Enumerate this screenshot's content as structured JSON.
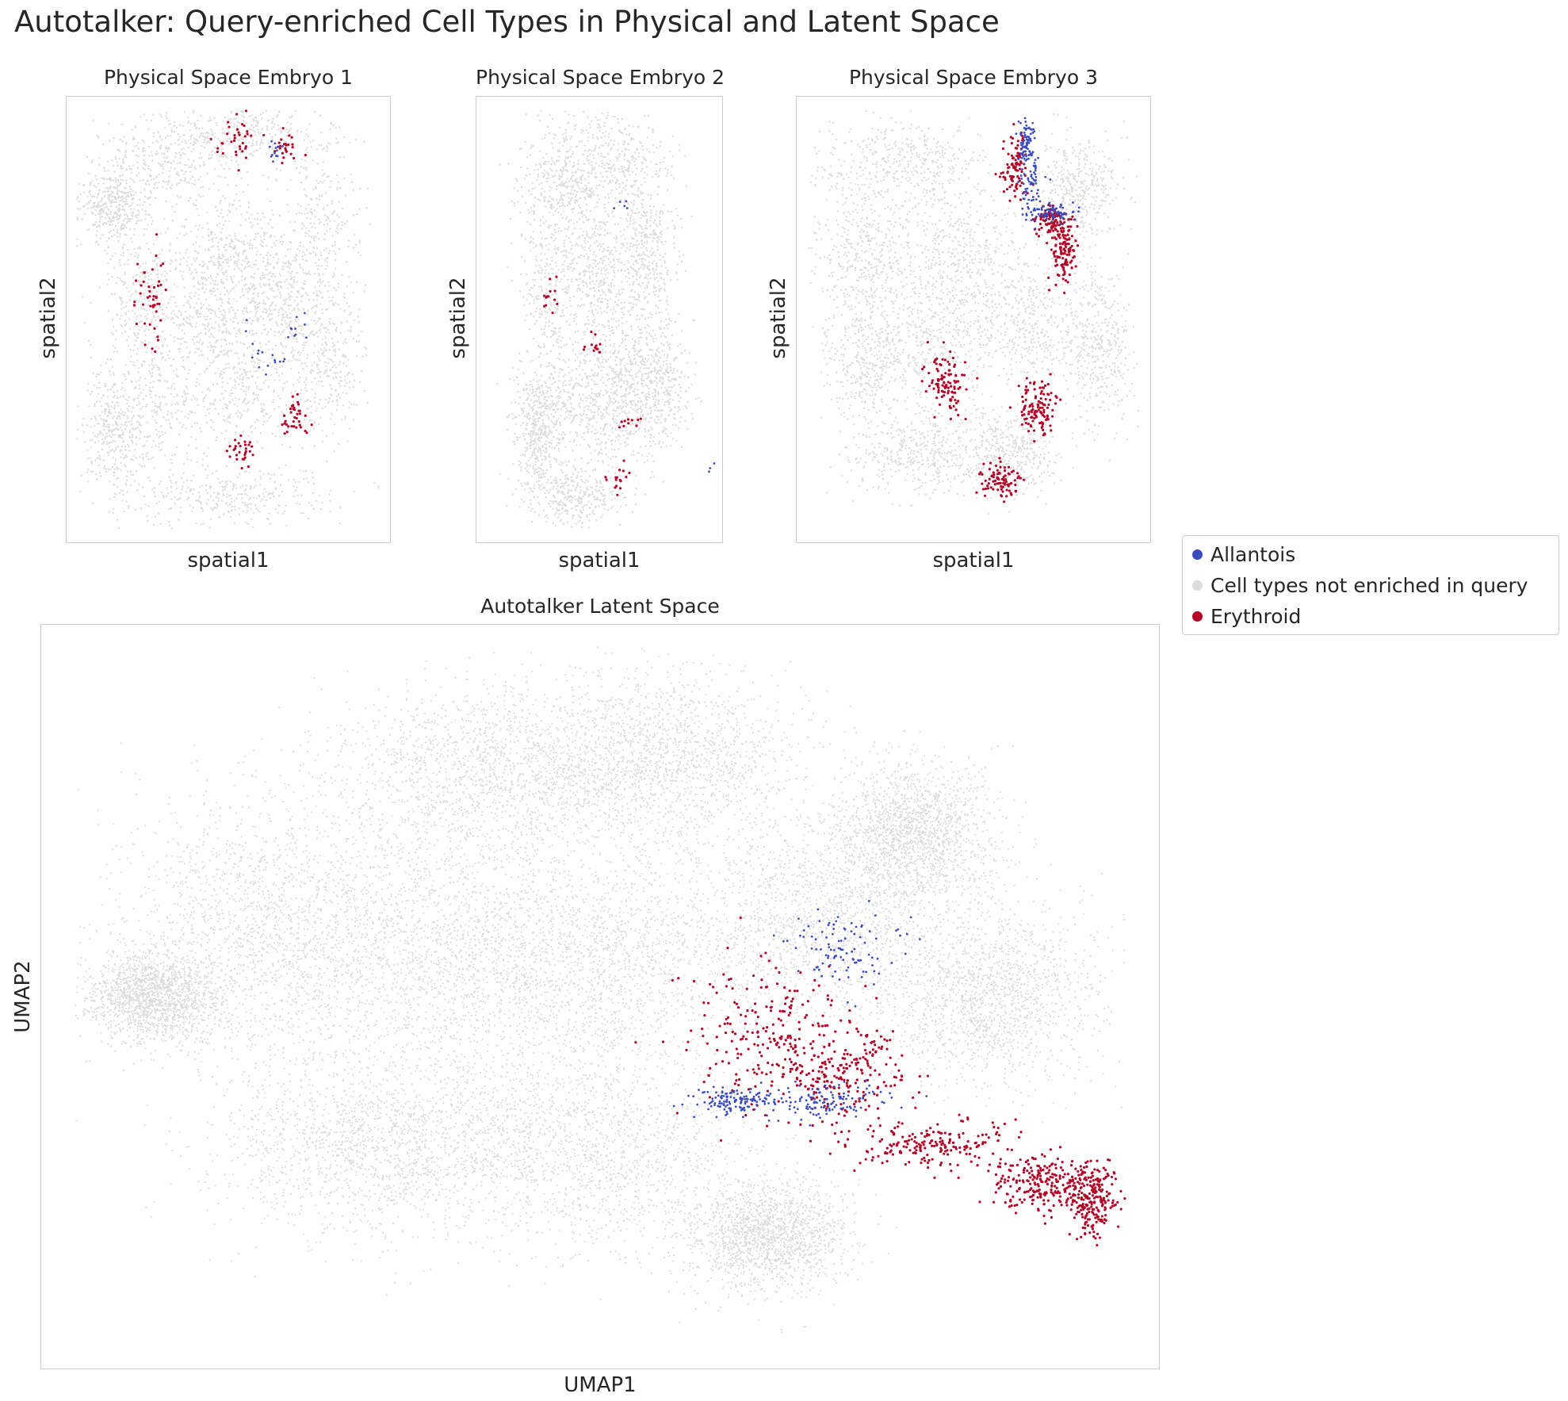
{
  "figure": {
    "title": "Autotalker: Query-enriched Cell Types in Physical and Latent Space"
  },
  "colors": {
    "allantois": "#3b4cc0",
    "not_enriched": "#dcdcdc",
    "erythroid": "#b40426"
  },
  "legend": {
    "items": [
      {
        "label": "Allantois",
        "color": "#3b4cc0"
      },
      {
        "label": "Cell types not enriched in query",
        "color": "#dcdcdc"
      },
      {
        "label": "Erythroid",
        "color": "#b40426"
      }
    ]
  },
  "chart_data": [
    {
      "type": "scatter",
      "title": "Physical Space Embryo 1",
      "xlabel": "spatial1",
      "ylabel": "spatial2",
      "ticks": "none",
      "grid": false,
      "categories": [
        "Allantois",
        "Cell types not enriched in query",
        "Erythroid"
      ],
      "clusters": {
        "background": [
          [
            0.14,
            0.25,
            0.08,
            0.07
          ],
          [
            0.3,
            0.15,
            0.18,
            0.08
          ],
          [
            0.55,
            0.08,
            0.2,
            0.06
          ],
          [
            0.25,
            0.45,
            0.12,
            0.15
          ],
          [
            0.5,
            0.35,
            0.12,
            0.1
          ],
          [
            0.78,
            0.3,
            0.1,
            0.2
          ],
          [
            0.3,
            0.7,
            0.15,
            0.12
          ],
          [
            0.55,
            0.65,
            0.15,
            0.12
          ],
          [
            0.8,
            0.6,
            0.1,
            0.15
          ],
          [
            0.5,
            0.9,
            0.28,
            0.06
          ],
          [
            0.15,
            0.75,
            0.08,
            0.12
          ],
          [
            0.45,
            0.5,
            0.15,
            0.1
          ],
          [
            0.65,
            0.45,
            0.1,
            0.12
          ]
        ],
        "allantois": [
          [
            0.6,
            0.58,
            0.05,
            0.06
          ],
          [
            0.7,
            0.52,
            0.03,
            0.03
          ],
          [
            0.65,
            0.12,
            0.02,
            0.02
          ]
        ],
        "erythroid": [
          [
            0.68,
            0.11,
            0.03,
            0.03
          ],
          [
            0.26,
            0.45,
            0.04,
            0.08
          ],
          [
            0.7,
            0.72,
            0.03,
            0.04
          ],
          [
            0.55,
            0.8,
            0.04,
            0.03
          ],
          [
            0.52,
            0.1,
            0.05,
            0.05
          ]
        ]
      },
      "counts": {
        "background": 4200,
        "allantois": 40,
        "erythroid": 170
      }
    },
    {
      "type": "scatter",
      "title": "Physical Space Embryo 2",
      "xlabel": "spatial1",
      "ylabel": "spatial2",
      "ticks": "none",
      "grid": false,
      "categories": [
        "Allantois",
        "Cell types not enriched in query",
        "Erythroid"
      ],
      "clusters": {
        "background": [
          [
            0.35,
            0.2,
            0.15,
            0.12
          ],
          [
            0.55,
            0.15,
            0.2,
            0.1
          ],
          [
            0.3,
            0.45,
            0.12,
            0.2
          ],
          [
            0.5,
            0.4,
            0.12,
            0.12
          ],
          [
            0.7,
            0.35,
            0.1,
            0.15
          ],
          [
            0.45,
            0.7,
            0.18,
            0.12
          ],
          [
            0.6,
            0.65,
            0.12,
            0.15
          ],
          [
            0.4,
            0.9,
            0.15,
            0.06
          ],
          [
            0.25,
            0.75,
            0.08,
            0.12
          ],
          [
            0.75,
            0.65,
            0.1,
            0.12
          ]
        ],
        "allantois": [
          [
            0.95,
            0.83,
            0.02,
            0.02
          ],
          [
            0.6,
            0.25,
            0.02,
            0.02
          ]
        ],
        "erythroid": [
          [
            0.48,
            0.56,
            0.03,
            0.03
          ],
          [
            0.62,
            0.73,
            0.03,
            0.02
          ],
          [
            0.58,
            0.85,
            0.04,
            0.03
          ],
          [
            0.3,
            0.45,
            0.03,
            0.03
          ]
        ]
      },
      "counts": {
        "background": 3700,
        "allantois": 8,
        "erythroid": 55
      }
    },
    {
      "type": "scatter",
      "title": "Physical Space Embryo 3",
      "xlabel": "spatial1",
      "ylabel": "spatial2",
      "ticks": "none",
      "grid": false,
      "categories": [
        "Allantois",
        "Cell types not enriched in query",
        "Erythroid"
      ],
      "clusters": {
        "background": [
          [
            0.3,
            0.15,
            0.2,
            0.08
          ],
          [
            0.2,
            0.35,
            0.12,
            0.12
          ],
          [
            0.45,
            0.35,
            0.15,
            0.12
          ],
          [
            0.2,
            0.6,
            0.1,
            0.15
          ],
          [
            0.4,
            0.55,
            0.15,
            0.12
          ],
          [
            0.65,
            0.5,
            0.12,
            0.15
          ],
          [
            0.35,
            0.8,
            0.15,
            0.08
          ],
          [
            0.6,
            0.8,
            0.12,
            0.08
          ],
          [
            0.8,
            0.2,
            0.1,
            0.1
          ],
          [
            0.85,
            0.55,
            0.08,
            0.15
          ]
        ],
        "allantois": [
          [
            0.65,
            0.1,
            0.02,
            0.04
          ],
          [
            0.72,
            0.26,
            0.06,
            0.02
          ],
          [
            0.66,
            0.2,
            0.03,
            0.06
          ]
        ],
        "erythroid": [
          [
            0.62,
            0.15,
            0.03,
            0.06
          ],
          [
            0.76,
            0.35,
            0.03,
            0.06
          ],
          [
            0.72,
            0.28,
            0.04,
            0.03
          ],
          [
            0.42,
            0.64,
            0.05,
            0.06
          ],
          [
            0.68,
            0.7,
            0.04,
            0.05
          ],
          [
            0.58,
            0.86,
            0.05,
            0.03
          ]
        ]
      },
      "counts": {
        "background": 4100,
        "allantois": 230,
        "erythroid": 620
      }
    },
    {
      "type": "scatter",
      "title": "Autotalker Latent Space",
      "xlabel": "UMAP1",
      "ylabel": "UMAP2",
      "ticks": "none",
      "grid": false,
      "categories": [
        "Allantois",
        "Cell types not enriched in query",
        "Erythroid"
      ],
      "clusters": {
        "background": [
          [
            0.4,
            0.2,
            0.12,
            0.1
          ],
          [
            0.55,
            0.18,
            0.1,
            0.1
          ],
          [
            0.2,
            0.4,
            0.1,
            0.15
          ],
          [
            0.35,
            0.45,
            0.12,
            0.15
          ],
          [
            0.5,
            0.45,
            0.12,
            0.12
          ],
          [
            0.7,
            0.4,
            0.1,
            0.12
          ],
          [
            0.85,
            0.5,
            0.08,
            0.1
          ],
          [
            0.3,
            0.7,
            0.12,
            0.1
          ],
          [
            0.5,
            0.7,
            0.12,
            0.12
          ],
          [
            0.65,
            0.82,
            0.06,
            0.06
          ],
          [
            0.1,
            0.5,
            0.05,
            0.05
          ],
          [
            0.78,
            0.28,
            0.06,
            0.08
          ]
        ],
        "allantois": [
          [
            0.62,
            0.64,
            0.03,
            0.015
          ],
          [
            0.7,
            0.64,
            0.04,
            0.02
          ],
          [
            0.72,
            0.43,
            0.04,
            0.05
          ]
        ],
        "erythroid": [
          [
            0.65,
            0.55,
            0.06,
            0.08
          ],
          [
            0.8,
            0.7,
            0.06,
            0.025
          ],
          [
            0.9,
            0.75,
            0.04,
            0.03
          ],
          [
            0.94,
            0.77,
            0.02,
            0.04
          ],
          [
            0.72,
            0.6,
            0.05,
            0.05
          ]
        ]
      },
      "counts": {
        "background": 19000,
        "allantois": 360,
        "erythroid": 1100
      }
    }
  ]
}
